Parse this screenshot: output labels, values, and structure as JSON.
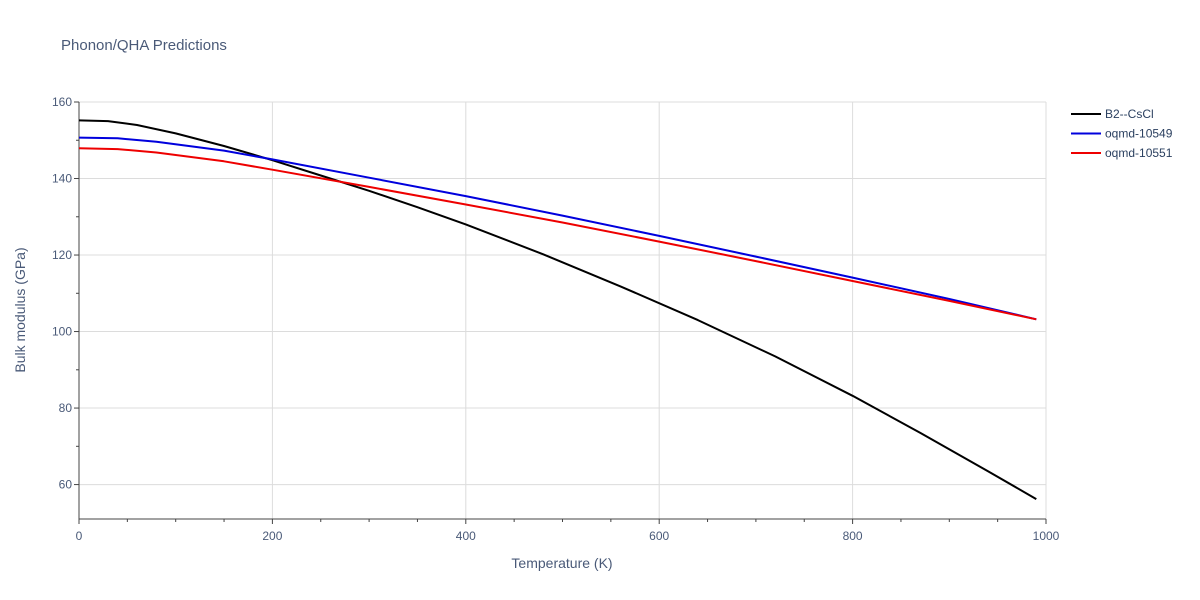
{
  "chart_data": {
    "type": "line",
    "title": "Phonon/QHA Predictions",
    "xlabel": "Temperature (K)",
    "ylabel": "Bulk modulus (GPa)",
    "xlim": [
      0,
      1000
    ],
    "ylim": [
      51,
      160
    ],
    "xticks": [
      0,
      200,
      400,
      600,
      800,
      1000
    ],
    "yticks": [
      60,
      80,
      100,
      120,
      140,
      160
    ],
    "grid": true,
    "legend_position": "top-right",
    "series": [
      {
        "name": "B2--CsCl",
        "color": "#000000",
        "x": [
          0,
          30,
          60,
          100,
          150,
          200,
          250,
          300,
          350,
          400,
          480,
          560,
          640,
          720,
          800,
          870,
          940,
          990
        ],
        "y": [
          155.2,
          155.0,
          154.0,
          151.8,
          148.5,
          144.8,
          140.8,
          136.8,
          132.5,
          128.0,
          120.2,
          111.8,
          103.0,
          93.5,
          83.2,
          73.5,
          63.5,
          56.2
        ]
      },
      {
        "name": "oqmd-10549",
        "color": "#0000dd",
        "x": [
          0,
          40,
          80,
          150,
          200,
          300,
          400,
          500,
          600,
          700,
          800,
          900,
          990
        ],
        "y": [
          150.7,
          150.5,
          149.6,
          147.3,
          145.0,
          140.2,
          135.4,
          130.3,
          125.0,
          119.6,
          114.1,
          108.5,
          103.2
        ]
      },
      {
        "name": "oqmd-10551",
        "color": "#ee0000",
        "x": [
          0,
          40,
          80,
          150,
          200,
          300,
          400,
          500,
          600,
          700,
          800,
          900,
          990
        ],
        "y": [
          147.9,
          147.7,
          146.8,
          144.5,
          142.3,
          137.8,
          133.2,
          128.5,
          123.5,
          118.4,
          113.2,
          108.0,
          103.2
        ]
      }
    ]
  }
}
